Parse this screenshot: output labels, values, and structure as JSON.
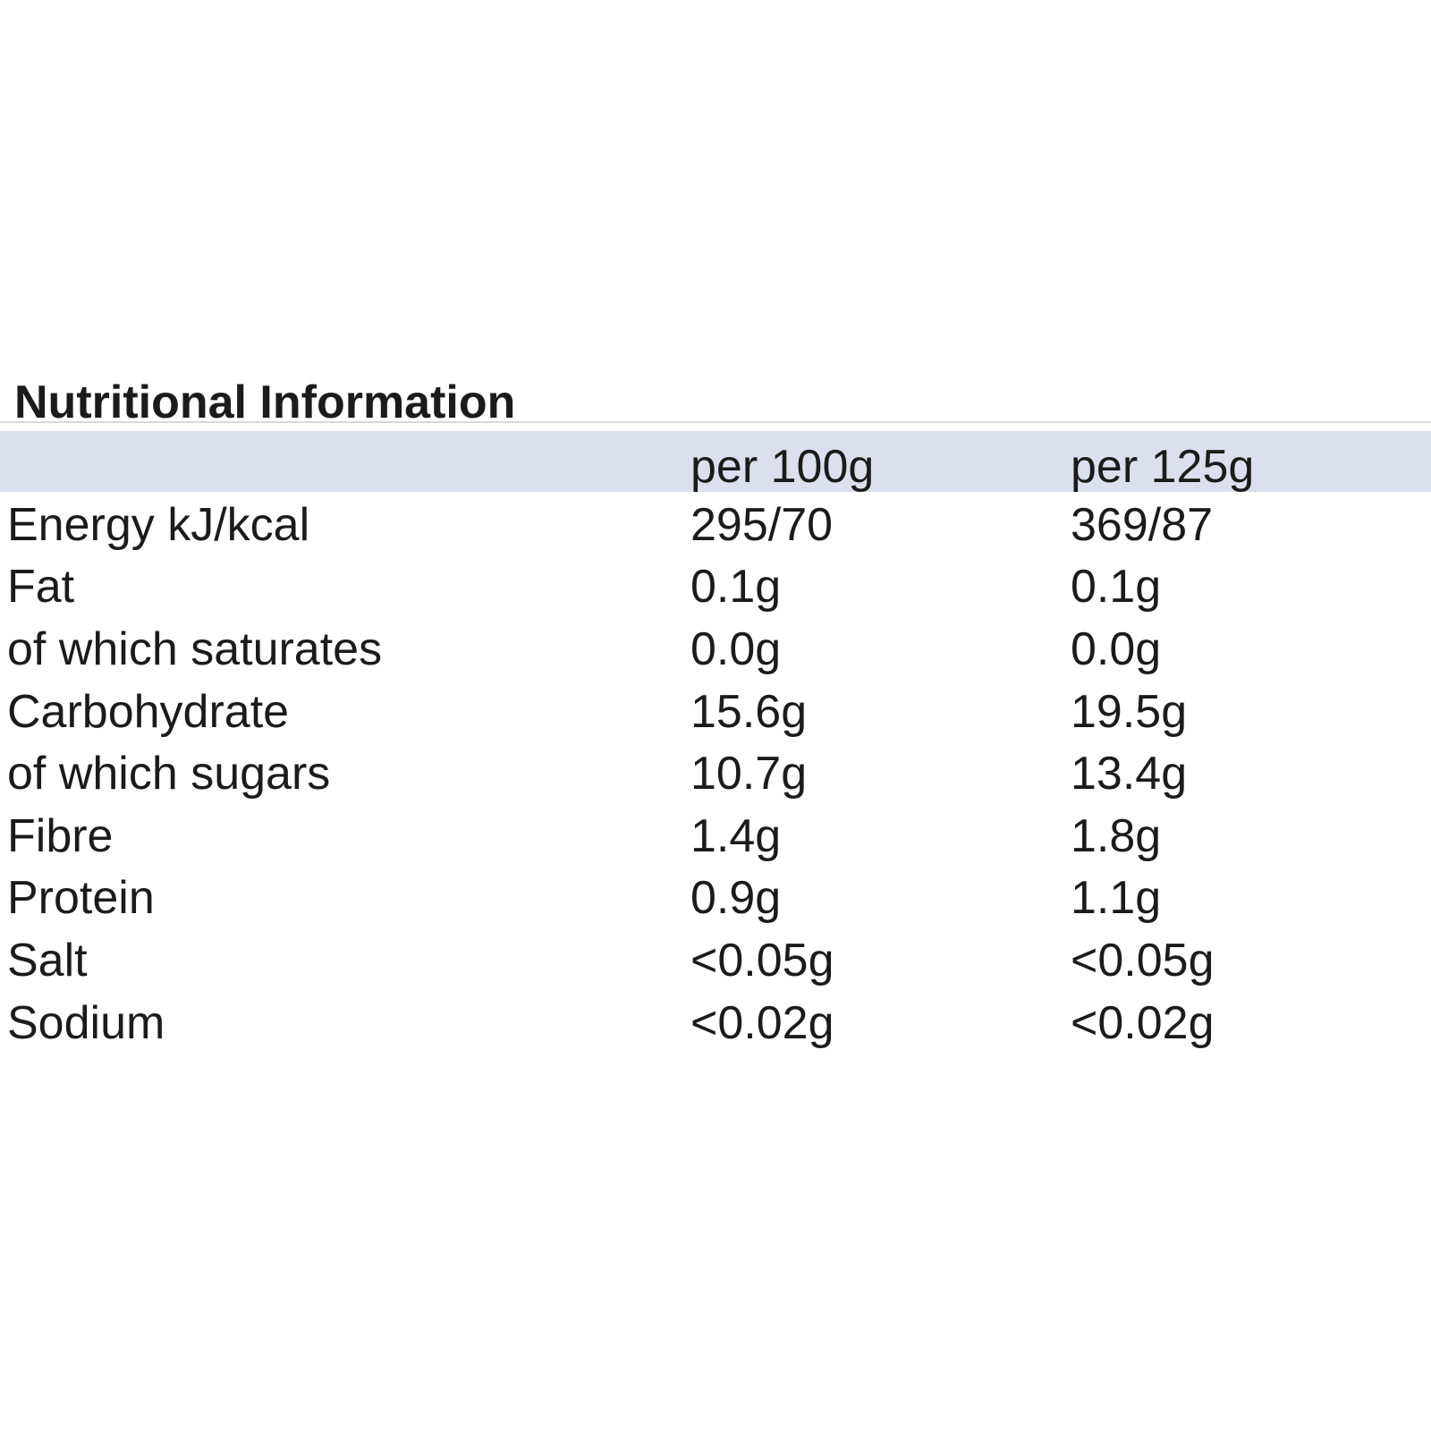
{
  "title": "Nutritional Information",
  "table": {
    "column_headers": {
      "col2": "per 100g",
      "col3": "per 125g"
    },
    "rows": [
      {
        "label": "Energy kJ/kcal",
        "per_100g": "295/70",
        "per_125g": "369/87"
      },
      {
        "label": "Fat",
        "per_100g": "0.1g",
        "per_125g": "0.1g"
      },
      {
        "label": "of which saturates",
        "per_100g": "0.0g",
        "per_125g": "0.0g"
      },
      {
        "label": "Carbohydrate",
        "per_100g": "15.6g",
        "per_125g": "19.5g"
      },
      {
        "label": "of which sugars",
        "per_100g": "10.7g",
        "per_125g": "13.4g"
      },
      {
        "label": "Fibre",
        "per_100g": "1.4g",
        "per_125g": "1.8g"
      },
      {
        "label": "Protein",
        "per_100g": "0.9g",
        "per_125g": "1.1g"
      },
      {
        "label": "Salt",
        "per_100g": "<0.05g",
        "per_125g": "<0.05g"
      },
      {
        "label": "Sodium",
        "per_100g": "<0.02g",
        "per_125g": "<0.02g"
      }
    ]
  },
  "colors": {
    "background": "#ffffff",
    "header_band": "#dcdfee",
    "text": "#1b1b1b",
    "rule": "#d8d8d8"
  }
}
